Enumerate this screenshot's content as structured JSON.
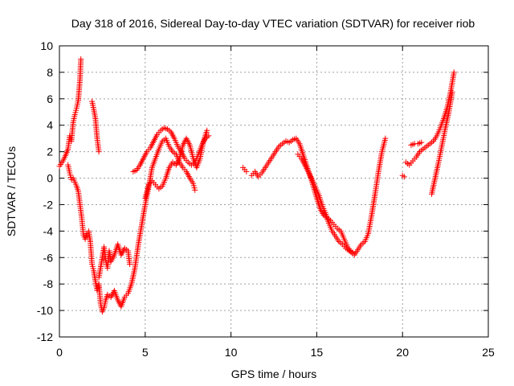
{
  "chart_data": {
    "type": "scatter",
    "title": "Day 318 of 2016, Sidereal Day-to-day VTEC variation (SDTVAR) for receiver riob",
    "xlabel": "GPS time / hours",
    "ylabel": "SDTVAR / TECUs",
    "xlim": [
      0,
      25
    ],
    "ylim": [
      -12,
      10
    ],
    "x_ticks": [
      "0",
      "5",
      "10",
      "15",
      "20",
      "25"
    ],
    "y_ticks": [
      "-12",
      "-10",
      "-8",
      "-6",
      "-4",
      "-2",
      "0",
      "2",
      "4",
      "6",
      "8",
      "10"
    ],
    "grid": true,
    "marker": "+",
    "marker_color": "#ff0000",
    "series": [
      {
        "segments": [
          [
            [
              0.0,
              0.9
            ],
            [
              0.2,
              1.3
            ],
            [
              0.35,
              1.7
            ],
            [
              0.5,
              2.2
            ],
            [
              0.6,
              3.2
            ],
            [
              0.7,
              2.8
            ],
            [
              0.8,
              4.2
            ],
            [
              0.9,
              4.8
            ],
            [
              1.0,
              5.3
            ],
            [
              1.1,
              5.9
            ],
            [
              1.2,
              7.5
            ],
            [
              1.25,
              9.0
            ]
          ],
          [
            [
              0.5,
              1.0
            ],
            [
              0.6,
              0.4
            ],
            [
              0.7,
              -0.1
            ],
            [
              0.8,
              0.0
            ],
            [
              0.9,
              -0.3
            ],
            [
              1.0,
              -0.6
            ],
            [
              1.1,
              -1.0
            ],
            [
              1.2,
              -2.0
            ],
            [
              1.3,
              -3.0
            ],
            [
              1.4,
              -4.3
            ],
            [
              1.5,
              -4.6
            ],
            [
              1.6,
              -4.2
            ],
            [
              1.7,
              -4.0
            ],
            [
              1.8,
              -4.8
            ],
            [
              1.9,
              -6.5
            ],
            [
              2.0,
              -7.0
            ],
            [
              2.1,
              -7.8
            ],
            [
              2.2,
              -8.5
            ],
            [
              2.3,
              -8.0
            ],
            [
              2.4,
              -9.5
            ],
            [
              2.5,
              -10.1
            ],
            [
              2.6,
              -9.8
            ],
            [
              2.7,
              -9.2
            ],
            [
              2.8,
              -8.8
            ],
            [
              3.0,
              -9.0
            ],
            [
              3.2,
              -8.5
            ],
            [
              3.4,
              -9.2
            ],
            [
              3.6,
              -9.7
            ],
            [
              3.8,
              -9.0
            ],
            [
              4.0,
              -8.7
            ],
            [
              4.2,
              -8.0
            ],
            [
              4.4,
              -6.8
            ],
            [
              4.6,
              -5.0
            ],
            [
              4.8,
              -3.5
            ],
            [
              5.0,
              -2.0
            ],
            [
              5.2,
              -0.7
            ],
            [
              5.4,
              0.8
            ],
            [
              5.6,
              1.5
            ],
            [
              5.8,
              2.2
            ],
            [
              6.0,
              2.8
            ],
            [
              6.2,
              3.0
            ],
            [
              6.4,
              2.4
            ],
            [
              6.6,
              2.0
            ],
            [
              6.8,
              1.8
            ],
            [
              7.0,
              1.2
            ],
            [
              7.2,
              0.8
            ],
            [
              7.4,
              0.5
            ],
            [
              7.6,
              0.0
            ],
            [
              7.8,
              -0.4
            ],
            [
              7.9,
              -0.9
            ]
          ],
          [
            [
              1.9,
              5.8
            ],
            [
              2.0,
              5.2
            ],
            [
              2.1,
              4.5
            ],
            [
              2.2,
              3.0
            ],
            [
              2.3,
              2.0
            ]
          ],
          [
            [
              2.3,
              -7.5
            ],
            [
              2.5,
              -6.0
            ],
            [
              2.6,
              -5.2
            ],
            [
              2.7,
              -6.2
            ],
            [
              2.8,
              -6.8
            ],
            [
              2.9,
              -5.5
            ],
            [
              3.0,
              -6.3
            ],
            [
              3.2,
              -5.8
            ],
            [
              3.4,
              -5.0
            ],
            [
              3.6,
              -5.8
            ],
            [
              3.8,
              -5.3
            ],
            [
              4.0,
              -5.5
            ],
            [
              4.1,
              -6.5
            ]
          ],
          [
            [
              4.3,
              0.5
            ],
            [
              4.5,
              0.6
            ],
            [
              4.7,
              1.0
            ],
            [
              4.9,
              1.5
            ],
            [
              5.1,
              2.0
            ],
            [
              5.3,
              2.3
            ],
            [
              5.5,
              2.8
            ],
            [
              5.7,
              3.3
            ],
            [
              5.9,
              3.6
            ],
            [
              6.1,
              3.8
            ],
            [
              6.3,
              3.7
            ],
            [
              6.5,
              3.5
            ],
            [
              6.7,
              3.0
            ],
            [
              6.9,
              2.4
            ],
            [
              7.1,
              2.0
            ],
            [
              7.3,
              1.5
            ],
            [
              7.5,
              1.2
            ],
            [
              7.7,
              1.0
            ],
            [
              7.9,
              1.2
            ],
            [
              8.1,
              1.8
            ],
            [
              8.3,
              2.5
            ],
            [
              8.5,
              3.0
            ],
            [
              8.7,
              3.2
            ]
          ],
          [
            [
              5.0,
              -1.5
            ],
            [
              5.2,
              -0.5
            ],
            [
              5.4,
              -0.2
            ],
            [
              5.6,
              -0.5
            ],
            [
              5.8,
              -0.8
            ],
            [
              6.0,
              -0.6
            ],
            [
              6.2,
              0.0
            ],
            [
              6.4,
              0.8
            ],
            [
              6.6,
              1.2
            ],
            [
              6.8,
              1.0
            ],
            [
              7.0,
              1.5
            ],
            [
              7.2,
              2.5
            ],
            [
              7.4,
              3.0
            ],
            [
              7.6,
              2.5
            ],
            [
              7.8,
              1.5
            ],
            [
              8.0,
              0.8
            ],
            [
              8.2,
              1.5
            ],
            [
              8.4,
              2.8
            ],
            [
              8.6,
              3.6
            ]
          ],
          [
            [
              10.7,
              0.8
            ],
            [
              10.9,
              0.5
            ]
          ],
          [
            [
              11.2,
              0.2
            ],
            [
              11.4,
              0.5
            ],
            [
              11.6,
              0.1
            ],
            [
              11.8,
              0.4
            ],
            [
              12.0,
              0.8
            ],
            [
              12.2,
              1.2
            ],
            [
              12.4,
              1.6
            ],
            [
              12.6,
              2.0
            ],
            [
              12.8,
              2.4
            ],
            [
              13.0,
              2.6
            ],
            [
              13.2,
              2.8
            ],
            [
              13.4,
              2.7
            ],
            [
              13.6,
              2.9
            ],
            [
              13.8,
              3.0
            ],
            [
              14.0,
              2.6
            ],
            [
              14.2,
              1.8
            ],
            [
              14.4,
              1.0
            ],
            [
              14.6,
              0.2
            ],
            [
              14.8,
              -0.6
            ],
            [
              15.0,
              -1.5
            ],
            [
              15.2,
              -2.3
            ],
            [
              15.4,
              -2.8
            ],
            [
              15.6,
              -3.0
            ],
            [
              15.8,
              -3.2
            ],
            [
              16.0,
              -3.5
            ],
            [
              16.2,
              -3.8
            ],
            [
              16.4,
              -4.0
            ],
            [
              16.6,
              -4.6
            ],
            [
              16.8,
              -5.2
            ],
            [
              17.0,
              -5.6
            ],
            [
              17.2,
              -5.8
            ],
            [
              17.4,
              -5.4
            ],
            [
              17.6,
              -5.0
            ],
            [
              17.8,
              -4.8
            ],
            [
              18.0,
              -4.2
            ],
            [
              18.2,
              -2.8
            ],
            [
              18.4,
              -1.2
            ],
            [
              18.6,
              0.5
            ],
            [
              18.8,
              2.0
            ],
            [
              19.0,
              3.0
            ]
          ],
          [
            [
              13.9,
              1.8
            ],
            [
              14.1,
              1.5
            ],
            [
              14.3,
              1.0
            ],
            [
              14.5,
              0.5
            ],
            [
              14.7,
              0.0
            ],
            [
              14.9,
              -0.6
            ],
            [
              15.1,
              -1.2
            ],
            [
              15.3,
              -2.0
            ],
            [
              15.5,
              -2.6
            ],
            [
              15.7,
              -3.4
            ],
            [
              15.9,
              -4.0
            ],
            [
              16.1,
              -4.4
            ],
            [
              16.3,
              -4.8
            ],
            [
              16.5,
              -5.0
            ],
            [
              16.7,
              -5.3
            ],
            [
              16.9,
              -5.5
            ],
            [
              17.1,
              -5.6
            ]
          ],
          [
            [
              20.0,
              0.2
            ],
            [
              20.1,
              0.1
            ]
          ],
          [
            [
              20.2,
              1.2
            ],
            [
              20.4,
              1.0
            ],
            [
              20.6,
              1.3
            ],
            [
              20.8,
              1.6
            ],
            [
              21.0,
              2.0
            ],
            [
              21.2,
              2.2
            ],
            [
              21.4,
              2.4
            ],
            [
              21.6,
              2.6
            ],
            [
              21.8,
              2.8
            ],
            [
              22.0,
              3.2
            ],
            [
              22.2,
              3.8
            ],
            [
              22.4,
              4.5
            ],
            [
              22.6,
              5.3
            ],
            [
              22.8,
              6.5
            ],
            [
              23.0,
              8.0
            ]
          ],
          [
            [
              20.5,
              2.5
            ],
            [
              20.7,
              2.6
            ],
            [
              20.9,
              2.6
            ],
            [
              21.1,
              2.7
            ]
          ],
          [
            [
              21.7,
              -1.2
            ],
            [
              21.9,
              0.0
            ],
            [
              22.1,
              1.2
            ],
            [
              22.3,
              2.5
            ],
            [
              22.5,
              3.8
            ],
            [
              22.7,
              5.0
            ],
            [
              22.9,
              6.5
            ]
          ]
        ]
      }
    ]
  }
}
